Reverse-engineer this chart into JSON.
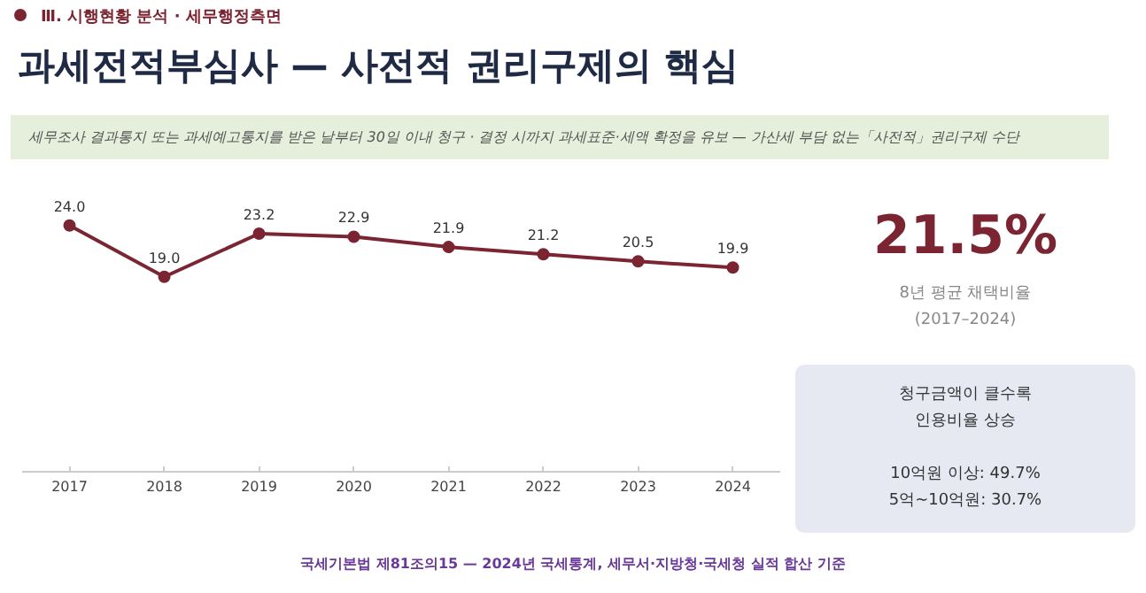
{
  "chart_data": [
    {
      "type": "line",
      "title": "과세전적부심사 — 사전적 권리구제의 핵심",
      "subtitle": "세무조사 결과통지 또는 과세예고통지를 받은 날부터 30일 이내 청구 · 결정 시까지 과세표준·세액 확정을 유보 — 가산세 부담 없는「사전적」권리구제 수단",
      "annotations": [
        "Ⅲ. 시행현황 분석 · 세무행정측면",
        "국세기본법 제81조의15 — 2024년 국세통계, 세무서·지방청·국세청 실적 합산 기준"
      ],
      "categories": [
        "2017",
        "2018",
        "2019",
        "2020",
        "2021",
        "2022",
        "2023",
        "2024"
      ],
      "values": [
        24.0,
        19.0,
        23.2,
        22.9,
        21.9,
        21.2,
        20.5,
        19.9
      ],
      "value_labels": [
        "24.0",
        "19.0",
        "23.2",
        "22.9",
        "21.9",
        "21.2",
        "20.5",
        "19.9"
      ],
      "color": "#7b2432",
      "marker": "circle",
      "line_style": "solid",
      "tick_labels": "x"
    },
    {
      "type": "other",
      "title": "21.5%",
      "subtitle": "8년 평균 채택비율",
      "annotations": [
        "(2017–2024)",
        "청구금액이 클수록",
        "인용비율 상승",
        "10억원 이상: 49.7%",
        "5억~10억원: 30.7%"
      ]
    }
  ]
}
